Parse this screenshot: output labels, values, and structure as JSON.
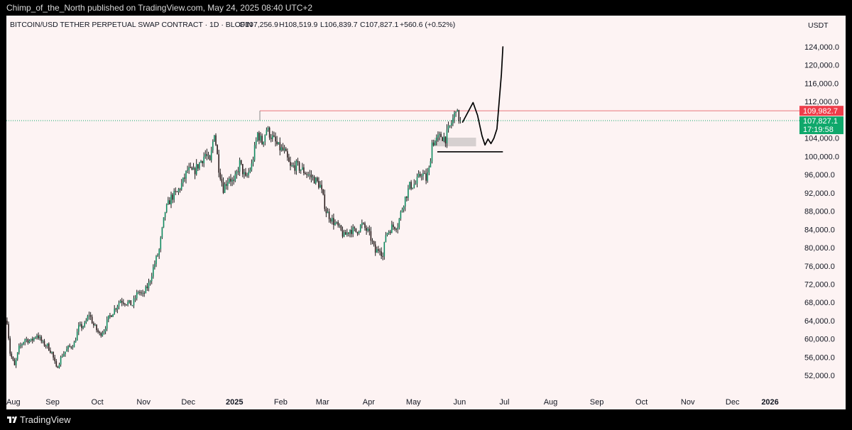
{
  "header": {
    "published_text": "Chimp_of_the_North published on TradingView.com, May 24, 2025 08:40 UTC+2"
  },
  "footer": {
    "brand": "TradingView"
  },
  "colors": {
    "background": "#fdf3f3",
    "up": "#0f8a5f",
    "down": "#2b1d1d",
    "resistance": "#e8747c",
    "current_tag": "#0fa86b",
    "resistance_tag": "#ee3d4a",
    "drawing": "#000000"
  },
  "chart_data": {
    "type": "candlestick",
    "title": "BITCOIN/USD TETHER PERPETUAL SWAP CONTRACT · 1D · BLOFIN",
    "ohlc": {
      "open_label": "O",
      "open": "107,256.9",
      "high_label": "H",
      "high": "108,519.9",
      "low_label": "L",
      "low": "106,839.7",
      "close_label": "C",
      "close": "107,827.1",
      "change": "+560.6 (+0.52%)"
    },
    "currency": "USDT",
    "y_axis": {
      "ticks": [
        "124,000.0",
        "120,000.0",
        "116,000.0",
        "112,000.0",
        "104,000.0",
        "100,000.0",
        "96,000.0",
        "92,000.0",
        "88,000.0",
        "84,000.0",
        "80,000.0",
        "76,000.0",
        "72,000.0",
        "68,000.0",
        "64,000.0",
        "60,000.0",
        "56,000.0",
        "52,000.0"
      ],
      "tick_values": [
        124000,
        120000,
        116000,
        112000,
        104000,
        100000,
        96000,
        92000,
        88000,
        84000,
        80000,
        76000,
        72000,
        68000,
        64000,
        60000,
        56000,
        52000
      ],
      "ylim": [
        48000,
        128000
      ]
    },
    "x_axis": {
      "ticks": [
        "Aug",
        "Sep",
        "Oct",
        "Nov",
        "Dec",
        "2025",
        "Feb",
        "Mar",
        "Apr",
        "May",
        "Jun",
        "Jul",
        "Aug",
        "Sep",
        "Oct",
        "Nov",
        "Dec",
        "2026"
      ],
      "tick_days": [
        0,
        31,
        61,
        92,
        122,
        153,
        184,
        212,
        243,
        273,
        304,
        334,
        365,
        396,
        426,
        457,
        487,
        518
      ],
      "xlim_days": [
        -1,
        518
      ],
      "x_start": "2024-08-01"
    },
    "price_tags": {
      "resistance": {
        "value": 109982.7,
        "label": "109,982.7"
      },
      "current": {
        "value": 107827.1,
        "label": "107,827.1",
        "countdown": "17:19:58"
      }
    },
    "price_path": [
      [
        0,
        64000
      ],
      [
        2,
        57000
      ],
      [
        5,
        54000
      ],
      [
        8,
        58000
      ],
      [
        12,
        60000
      ],
      [
        16,
        59500
      ],
      [
        20,
        61000
      ],
      [
        24,
        59000
      ],
      [
        27,
        58500
      ],
      [
        30,
        57000
      ],
      [
        33,
        53500
      ],
      [
        37,
        56500
      ],
      [
        41,
        58000
      ],
      [
        45,
        59000
      ],
      [
        48,
        62500
      ],
      [
        52,
        63000
      ],
      [
        55,
        65500
      ],
      [
        58,
        63000
      ],
      [
        62,
        61000
      ],
      [
        65,
        62000
      ],
      [
        68,
        64500
      ],
      [
        72,
        66500
      ],
      [
        76,
        68500
      ],
      [
        80,
        68000
      ],
      [
        84,
        67500
      ],
      [
        88,
        70500
      ],
      [
        91,
        69500
      ],
      [
        95,
        72000
      ],
      [
        98,
        75500
      ],
      [
        102,
        79500
      ],
      [
        106,
        88000
      ],
      [
        110,
        91000
      ],
      [
        114,
        92000
      ],
      [
        118,
        94500
      ],
      [
        121,
        97000
      ],
      [
        125,
        96500
      ],
      [
        129,
        98500
      ],
      [
        133,
        100500
      ],
      [
        136,
        98500
      ],
      [
        139,
        105500
      ],
      [
        142,
        97500
      ],
      [
        145,
        93000
      ],
      [
        149,
        95500
      ],
      [
        152,
        94000
      ],
      [
        156,
        98500
      ],
      [
        160,
        95000
      ],
      [
        164,
        98000
      ],
      [
        168,
        105000
      ],
      [
        171,
        103000
      ],
      [
        174,
        106000
      ],
      [
        178,
        104000
      ],
      [
        182,
        102000
      ],
      [
        186,
        101000
      ],
      [
        190,
        97500
      ],
      [
        194,
        98000
      ],
      [
        198,
        97000
      ],
      [
        202,
        96000
      ],
      [
        206,
        95000
      ],
      [
        210,
        93500
      ],
      [
        214,
        88000
      ],
      [
        218,
        86000
      ],
      [
        222,
        84500
      ],
      [
        226,
        82500
      ],
      [
        230,
        84000
      ],
      [
        234,
        83500
      ],
      [
        238,
        85000
      ],
      [
        242,
        83500
      ],
      [
        244,
        82000
      ],
      [
        247,
        79000
      ],
      [
        250,
        80000
      ],
      [
        252,
        78000
      ],
      [
        254,
        83000
      ],
      [
        258,
        84500
      ],
      [
        262,
        85000
      ],
      [
        266,
        90000
      ],
      [
        270,
        93500
      ],
      [
        274,
        94000
      ],
      [
        278,
        96500
      ],
      [
        281,
        95000
      ],
      [
        283,
        97000
      ],
      [
        285,
        103000
      ],
      [
        288,
        103500
      ],
      [
        291,
        104500
      ],
      [
        294,
        104000
      ],
      [
        297,
        106500
      ],
      [
        300,
        109000
      ],
      [
        301,
        111000
      ],
      [
        302,
        109000
      ],
      [
        304,
        107827
      ]
    ],
    "annotations": {
      "resistance_line": {
        "start_day": 170,
        "value": 109982.7
      },
      "support_zone": {
        "day_from": 287,
        "day_to": 315,
        "low": 102200,
        "high": 104100
      },
      "support_line": {
        "day_from": 289,
        "day_to": 333,
        "value": 101000
      },
      "projection_path": [
        [
          306,
          107500
        ],
        [
          313,
          111800
        ],
        [
          316,
          109000
        ],
        [
          319,
          104500
        ],
        [
          321,
          102500
        ],
        [
          323,
          103800
        ],
        [
          325,
          102800
        ],
        [
          327,
          104000
        ],
        [
          329,
          106000
        ],
        [
          330,
          110000
        ],
        [
          332,
          118000
        ],
        [
          333,
          124000
        ]
      ]
    }
  }
}
